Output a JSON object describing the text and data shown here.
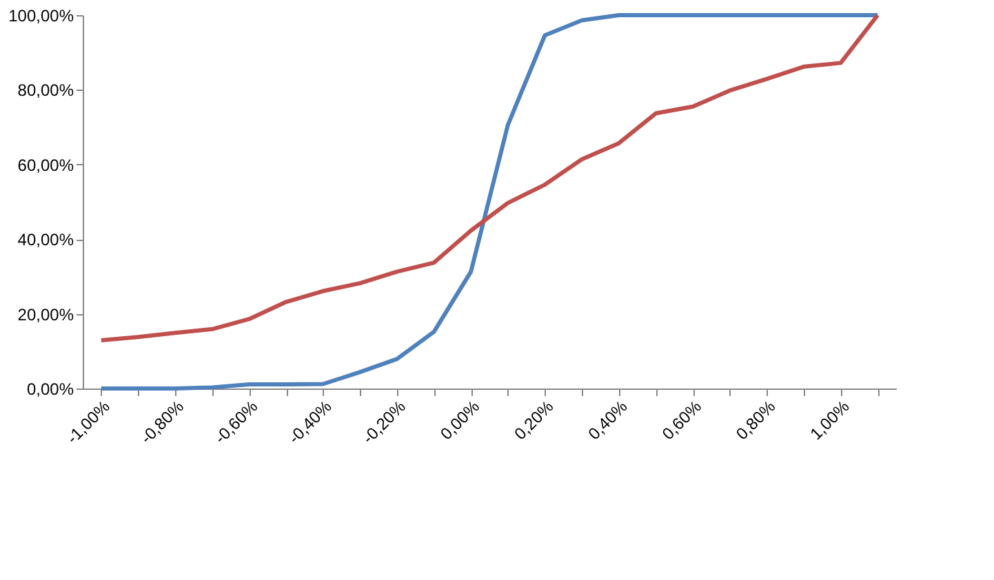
{
  "chart_data": {
    "type": "line",
    "categories": [
      "-1,00%",
      null,
      "-0,80%",
      null,
      "-0,60%",
      null,
      "-0,40%",
      null,
      "-0,20%",
      null,
      "0,00%",
      null,
      "0,20%",
      null,
      "0,40%",
      null,
      "0,60%",
      null,
      "0,80%",
      null,
      "1,00%",
      null
    ],
    "series": [
      {
        "color": "#4f81bd",
        "values": [
          0,
          0,
          0,
          0.3,
          1.1,
          1.1,
          1.2,
          4.4,
          7.9,
          15.2,
          31.3,
          70.6,
          94.6,
          98.6,
          100,
          100,
          100,
          100,
          100,
          100,
          100,
          100
        ]
      },
      {
        "color": "#c0504d",
        "values": [
          12.9,
          13.8,
          14.9,
          15.9,
          18.6,
          23.2,
          26.1,
          28.2,
          31.3,
          33.7,
          42.3,
          49.7,
          54.6,
          61.4,
          65.7,
          73.7,
          75.5,
          79.8,
          82.9,
          86.2,
          87.2,
          100
        ]
      }
    ],
    "ylim": [
      0,
      100
    ],
    "yticks": [
      {
        "value": 0,
        "label": "0,00%"
      },
      {
        "value": 20,
        "label": "20,00%"
      },
      {
        "value": 40,
        "label": "40,00%"
      },
      {
        "value": 60,
        "label": "60,00%"
      },
      {
        "value": 80,
        "label": "80,00%"
      },
      {
        "value": 100,
        "label": "100,00%"
      }
    ],
    "grid": false,
    "legend": false,
    "marker": "none",
    "line_style": "solid"
  }
}
